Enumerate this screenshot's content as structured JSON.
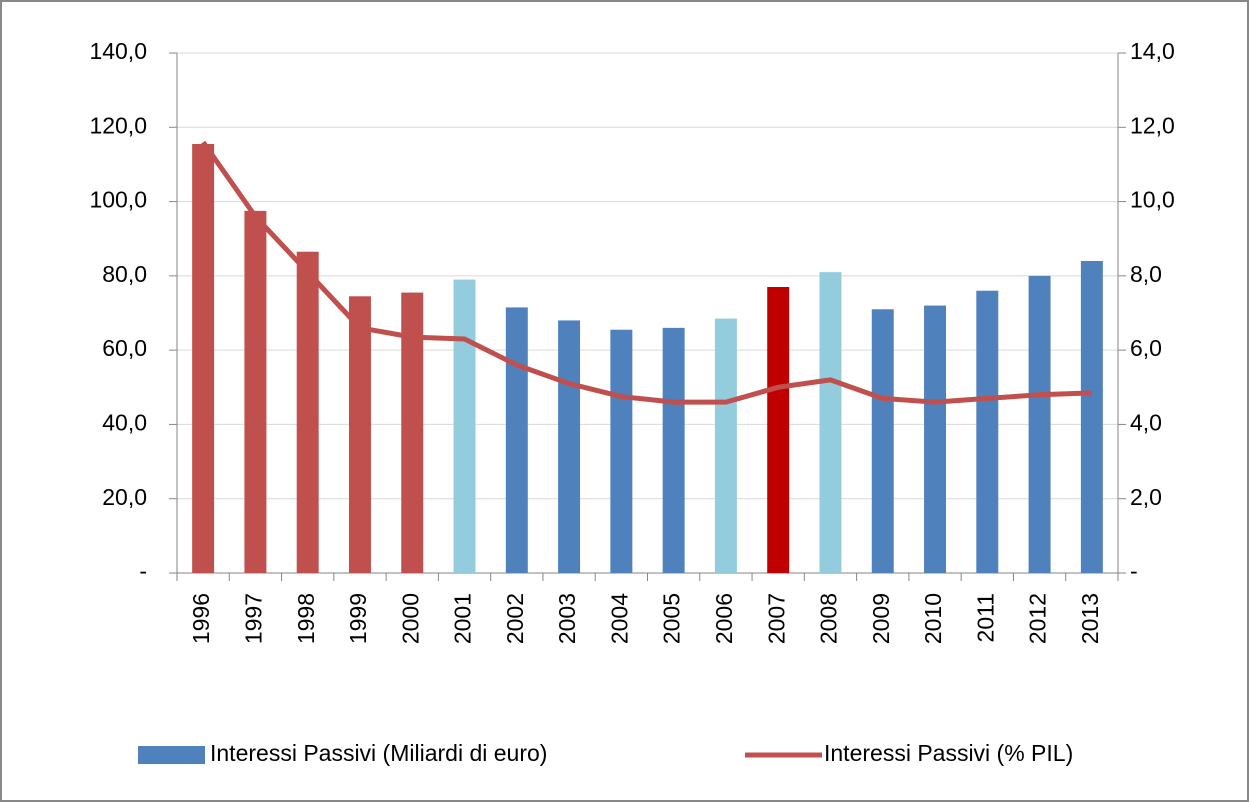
{
  "chart_data": {
    "type": "bar",
    "categories": [
      "1996",
      "1997",
      "1998",
      "1999",
      "2000",
      "2001",
      "2002",
      "2003",
      "2004",
      "2005",
      "2006",
      "2007",
      "2008",
      "2009",
      "2010",
      "2011",
      "2012",
      "2013"
    ],
    "series": [
      {
        "name": "Interessi Passivi (Miliardi di euro)",
        "type": "bar",
        "color": "#4f81bd",
        "colors": [
          "#c0504d",
          "#c0504d",
          "#c0504d",
          "#c0504d",
          "#c0504d",
          "#93cddd",
          "#4f81bd",
          "#4f81bd",
          "#4f81bd",
          "#4f81bd",
          "#93cddd",
          "#c00000",
          "#93cddd",
          "#4f81bd",
          "#4f81bd",
          "#4f81bd",
          "#4f81bd",
          "#4f81bd"
        ],
        "values": [
          115.5,
          97.5,
          86.5,
          74.5,
          75.5,
          79,
          71.5,
          68,
          65.5,
          66,
          68.5,
          77,
          81,
          71,
          72,
          76,
          80,
          84
        ]
      },
      {
        "name": "Interessi Passivi (% PIL)",
        "type": "line",
        "axis": "y2",
        "color": "#c0504d",
        "values": [
          11.6,
          9.6,
          8.1,
          6.6,
          6.35,
          6.3,
          5.6,
          5.1,
          4.75,
          4.6,
          4.6,
          5.0,
          5.2,
          4.7,
          4.6,
          4.7,
          4.8,
          4.85
        ]
      }
    ],
    "ylim": [
      0,
      140
    ],
    "yticks": [
      {
        "value": 0,
        "label": "-"
      },
      {
        "value": 20,
        "label": "20,0"
      },
      {
        "value": 40,
        "label": "40,0"
      },
      {
        "value": 60,
        "label": "60,0"
      },
      {
        "value": 80,
        "label": "80,0"
      },
      {
        "value": 100,
        "label": "100,0"
      },
      {
        "value": 120,
        "label": "120,0"
      },
      {
        "value": 140,
        "label": "140,0"
      }
    ],
    "y2lim": [
      0,
      14
    ],
    "y2ticks": [
      {
        "value": 0,
        "label": "-"
      },
      {
        "value": 2,
        "label": "2,0"
      },
      {
        "value": 4,
        "label": "4,0"
      },
      {
        "value": 6,
        "label": "6,0"
      },
      {
        "value": 8,
        "label": "8,0"
      },
      {
        "value": 10,
        "label": "10,0"
      },
      {
        "value": 12,
        "label": "12,0"
      },
      {
        "value": 14,
        "label": "14,0"
      }
    ],
    "grid": true,
    "legend": "bottom"
  }
}
